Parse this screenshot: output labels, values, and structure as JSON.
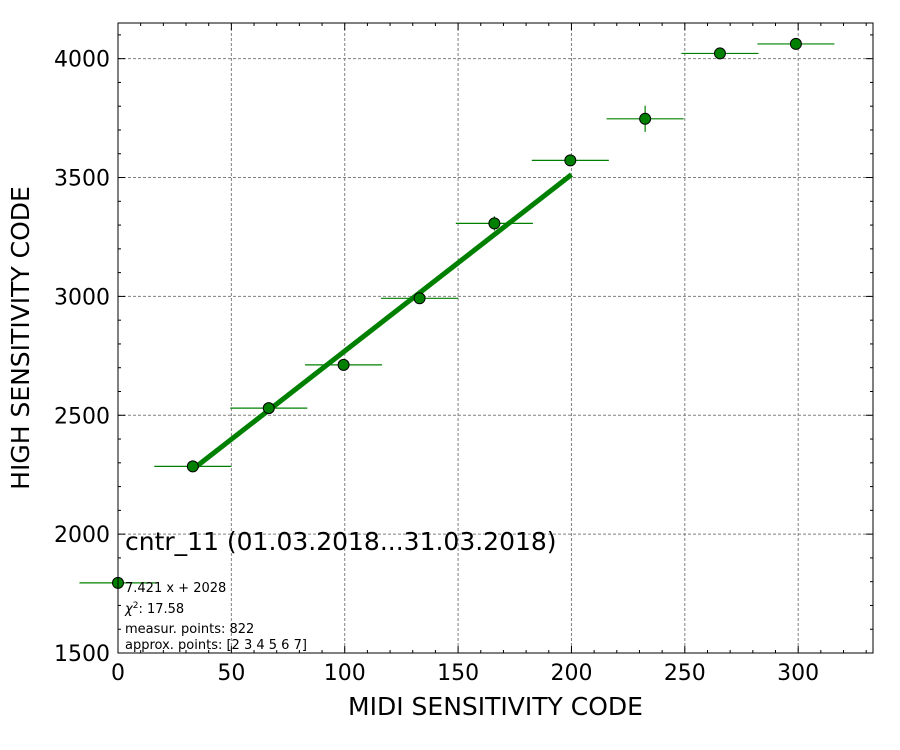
{
  "chart_data": {
    "type": "scatter",
    "title": "",
    "xlabel": "MIDI SENSITIVITY CODE",
    "ylabel": "HIGH SENSITIVITY CODE",
    "xlim": [
      0,
      333
    ],
    "ylim": [
      1500,
      4150
    ],
    "x_ticks": [
      0,
      50,
      100,
      150,
      200,
      250,
      300
    ],
    "y_ticks": [
      1500,
      2000,
      2500,
      3000,
      3500,
      4000
    ],
    "grid": true,
    "colors": {
      "point": "#008000",
      "point_edge": "#000000",
      "fit": "#008000",
      "errorbar": "#008000",
      "grid": "#808080"
    },
    "points": [
      {
        "x": 0,
        "y": 1795,
        "xerr": 17,
        "yerr": 0
      },
      {
        "x": 33,
        "y": 2285,
        "xerr": 17,
        "yerr": 0
      },
      {
        "x": 66.5,
        "y": 2530,
        "xerr": 17,
        "yerr": 0
      },
      {
        "x": 99.5,
        "y": 2712,
        "xerr": 17,
        "yerr": 0
      },
      {
        "x": 133,
        "y": 2992,
        "xerr": 17,
        "yerr": 0
      },
      {
        "x": 166,
        "y": 3307,
        "xerr": 17,
        "yerr": 30
      },
      {
        "x": 199.5,
        "y": 3572,
        "xerr": 17,
        "yerr": 20
      },
      {
        "x": 232.5,
        "y": 3747,
        "xerr": 17,
        "yerr": 55
      },
      {
        "x": 265.5,
        "y": 4022,
        "xerr": 17,
        "yerr": 0
      },
      {
        "x": 299,
        "y": 4062,
        "xerr": 17,
        "yerr": 0
      }
    ],
    "fit": {
      "slope": 7.421,
      "intercept": 2028,
      "x_start": 33,
      "x_end": 200
    },
    "annotations": {
      "title_text": "cntr_11 (01.03.2018...31.03.2018)",
      "fit_text": "7.421 x + 2028",
      "chi2_value": ": 17.58",
      "measur_text": "measur. points: 822",
      "approx_text": "approx. points: [2 3 4 5 6 7]"
    }
  }
}
